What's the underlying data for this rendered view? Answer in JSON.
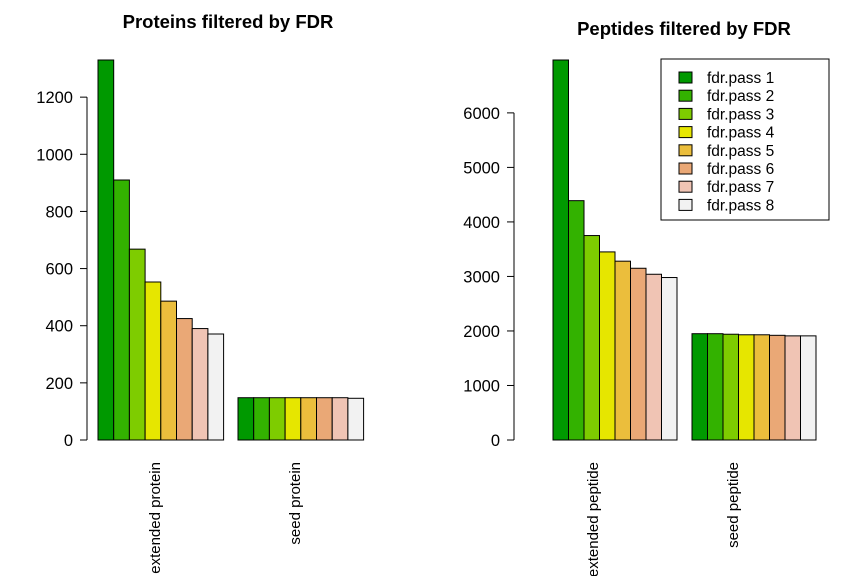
{
  "colors": [
    "#009900",
    "#33b200",
    "#7ecc00",
    "#e6e600",
    "#ebbe3c",
    "#eaa876",
    "#f0c4b4",
    "#f2f2f2"
  ],
  "chart_data": [
    {
      "type": "bar",
      "title": "Proteins filtered by FDR",
      "categories": [
        "extended protein",
        "seed protein"
      ],
      "ylim": [
        0,
        1330
      ],
      "yticks": [
        0,
        200,
        400,
        600,
        800,
        1000,
        1200
      ],
      "series": [
        {
          "name": "fdr.pass 1",
          "values": [
            1330,
            148
          ]
        },
        {
          "name": "fdr.pass 2",
          "values": [
            910,
            148
          ]
        },
        {
          "name": "fdr.pass 3",
          "values": [
            668,
            148
          ]
        },
        {
          "name": "fdr.pass 4",
          "values": [
            553,
            148
          ]
        },
        {
          "name": "fdr.pass 5",
          "values": [
            486,
            148
          ]
        },
        {
          "name": "fdr.pass 6",
          "values": [
            425,
            148
          ]
        },
        {
          "name": "fdr.pass 7",
          "values": [
            390,
            148
          ]
        },
        {
          "name": "fdr.pass 8",
          "values": [
            371,
            146
          ]
        }
      ],
      "legend": false
    },
    {
      "type": "bar",
      "title": "Peptides filtered by FDR",
      "categories": [
        "extended peptide",
        "seed peptide"
      ],
      "ylim": [
        0,
        6970
      ],
      "yticks": [
        0,
        1000,
        2000,
        3000,
        4000,
        5000,
        6000
      ],
      "series": [
        {
          "name": "fdr.pass 1",
          "values": [
            6970,
            1950
          ]
        },
        {
          "name": "fdr.pass 2",
          "values": [
            4390,
            1950
          ]
        },
        {
          "name": "fdr.pass 3",
          "values": [
            3750,
            1940
          ]
        },
        {
          "name": "fdr.pass 4",
          "values": [
            3450,
            1930
          ]
        },
        {
          "name": "fdr.pass 5",
          "values": [
            3280,
            1930
          ]
        },
        {
          "name": "fdr.pass 6",
          "values": [
            3150,
            1920
          ]
        },
        {
          "name": "fdr.pass 7",
          "values": [
            3040,
            1910
          ]
        },
        {
          "name": "fdr.pass 8",
          "values": [
            2980,
            1910
          ]
        }
      ],
      "legend": true,
      "legend_position": "top-right"
    }
  ]
}
